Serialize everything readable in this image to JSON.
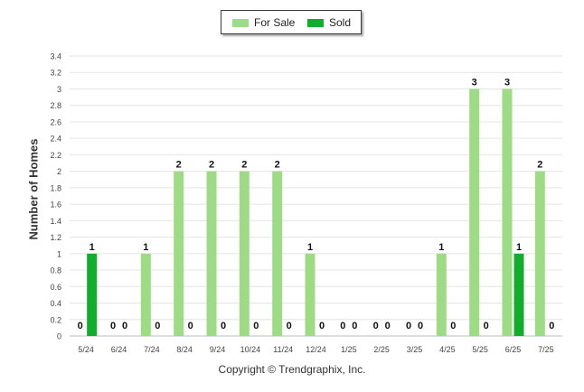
{
  "chart_data": {
    "type": "bar",
    "ylabel": "Number of Homes",
    "ylim": [
      0,
      3.4
    ],
    "yticks": [
      "0",
      "0.2",
      "0.4",
      "0.6",
      "0.8",
      "1",
      "1.2",
      "1.4",
      "1.6",
      "1.8",
      "2",
      "2.2",
      "2.4",
      "2.6",
      "2.8",
      "3",
      "3.2",
      "3.4"
    ],
    "categories": [
      "5/24",
      "6/24",
      "7/24",
      "8/24",
      "9/24",
      "10/24",
      "11/24",
      "12/24",
      "1/25",
      "2/25",
      "3/25",
      "4/25",
      "5/25",
      "6/25",
      "7/25"
    ],
    "series": [
      {
        "name": "For Sale",
        "color": "#9ddc84",
        "values": [
          0,
          0,
          1,
          2,
          2,
          2,
          2,
          1,
          0,
          0,
          0,
          1,
          3,
          3,
          2
        ]
      },
      {
        "name": "Sold",
        "color": "#13ad2e",
        "values": [
          1,
          0,
          0,
          0,
          0,
          0,
          0,
          0,
          0,
          0,
          0,
          0,
          0,
          1,
          0
        ]
      }
    ],
    "legend": "top-center",
    "grid": true
  },
  "footer": {
    "copyright": "Copyright © Trendgraphix, Inc."
  }
}
